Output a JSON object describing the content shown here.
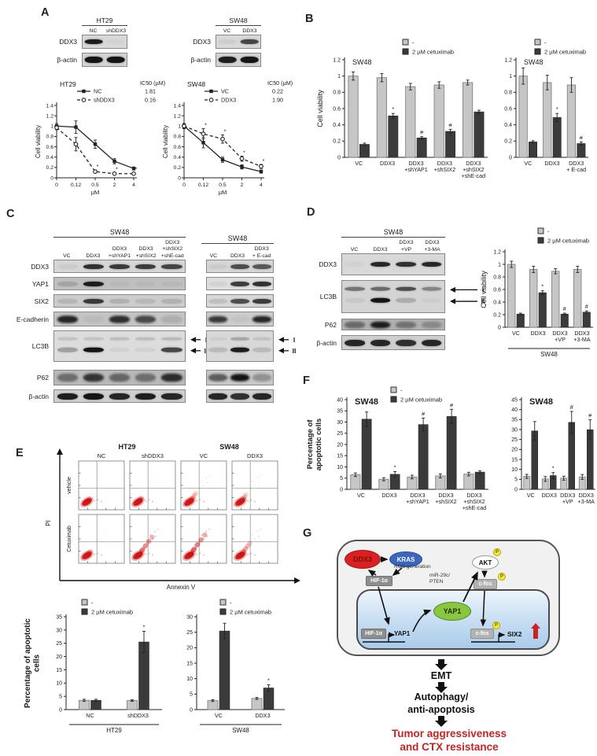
{
  "legend": {
    "untreated": "-",
    "treated": "2 µM cetuximab"
  },
  "colors": {
    "bar_untreated": "#c6c6c6",
    "bar_treated": "#3b3b3b",
    "scatter": "#cf1212",
    "ddx3": "#d92121",
    "kras": "#3b67c0",
    "yap1": "#8bc63f",
    "outcome_red": "#c42424"
  },
  "panels": {
    "a": {
      "label": "A",
      "blots": [
        {
          "title": "HT29",
          "lanes": [
            [
              "NC"
            ],
            [
              "shDDX3"
            ]
          ],
          "rows": [
            {
              "label": "DDX3",
              "h": 18,
              "bg": "#d8d8d8",
              "bands": [
                0.95,
                0.03
              ]
            },
            {
              "label": "β-actin",
              "h": 18,
              "bg": "#d4d4d4",
              "bands": [
                1,
                1
              ],
              "bh": 8
            }
          ]
        },
        {
          "title": "SW48",
          "lanes": [
            [
              "VC"
            ],
            [
              "DDX3"
            ]
          ],
          "rows": [
            {
              "label": "DDX3",
              "h": 18,
              "bg": "#d8d8d8",
              "bands": [
                0.05,
                0.75
              ]
            },
            {
              "label": "β-actin",
              "h": 18,
              "bg": "#d4d4d4",
              "bands": [
                0.95,
                1
              ],
              "bh": 8
            }
          ]
        }
      ],
      "charts": [
        {
          "type": "line",
          "title": "HT29",
          "ylabel": "Cell viability",
          "xlabel": "µM",
          "ymax": 1.4,
          "ystep": 0.2,
          "x": [
            "0",
            "0.12",
            "0.5",
            "2",
            "4"
          ],
          "ic50_header": "IC50 (µM)",
          "series": [
            {
              "name": "NC",
              "ic50": "1.81",
              "dashed": false,
              "values": [
                1.0,
                0.98,
                0.65,
                0.32,
                0.18
              ],
              "err": [
                0.05,
                0.12,
                0.08,
                0.05,
                0.03
              ],
              "sig": [
                "",
                "",
                "",
                "",
                ""
              ]
            },
            {
              "name": "shDDX3",
              "ic50": "0.16",
              "dashed": true,
              "values": [
                0.97,
                0.65,
                0.12,
                0.08,
                0.08
              ],
              "err": [
                0.04,
                0.13,
                0.03,
                0.02,
                0.02
              ],
              "sig": [
                "",
                "",
                "*",
                "*",
                "*"
              ]
            }
          ]
        },
        {
          "type": "line",
          "title": "SW48",
          "ylabel": "Cell viability",
          "xlabel": "µM",
          "ymax": 1.4,
          "ystep": 0.2,
          "x": [
            "0",
            "0.12",
            "0.5",
            "2",
            "4"
          ],
          "ic50_header": "IC50 (µM)",
          "series": [
            {
              "name": "VC",
              "ic50": "0.22",
              "dashed": false,
              "values": [
                1.0,
                0.68,
                0.35,
                0.21,
                0.12
              ],
              "err": [
                0.05,
                0.1,
                0.05,
                0.04,
                0.03
              ],
              "sig": [
                "",
                "",
                "",
                "",
                ""
              ]
            },
            {
              "name": "DDX3",
              "ic50": "1.90",
              "dashed": true,
              "values": [
                1.0,
                0.85,
                0.75,
                0.37,
                0.22
              ],
              "err": [
                0.04,
                0.1,
                0.08,
                0.05,
                0.04
              ],
              "sig": [
                "",
                "*",
                "*",
                "*",
                "*"
              ]
            }
          ]
        }
      ]
    },
    "b": {
      "label": "B",
      "charts": [
        {
          "type": "bar",
          "title": "SW48",
          "ylabel": "Cell viability",
          "ymax": 1.2,
          "ystep": 0.2,
          "categories": [
            [
              "VC"
            ],
            [
              "DDX3"
            ],
            [
              "DDX3",
              "+shYAP1"
            ],
            [
              "DDX3",
              "+shSIX2"
            ],
            [
              "DDX3",
              "+shSIX2",
              "+shE-cad"
            ]
          ],
          "untreated": [
            1.0,
            0.98,
            0.87,
            0.89,
            0.92
          ],
          "untreated_err": [
            0.05,
            0.05,
            0.04,
            0.04,
            0.03
          ],
          "treated": [
            0.16,
            0.51,
            0.24,
            0.32,
            0.56
          ],
          "treated_err": [
            0.015,
            0.03,
            0.015,
            0.025,
            0.02
          ],
          "marks": [
            "",
            "*",
            "#",
            "#",
            ""
          ],
          "legend": true
        },
        {
          "type": "bar",
          "title": "SW48",
          "ymax": 1.2,
          "ystep": 0.2,
          "categories": [
            [
              "VC"
            ],
            [
              "DDX3"
            ],
            [
              "DDX3",
              "+ E-cad"
            ]
          ],
          "untreated": [
            1.0,
            0.92,
            0.89
          ],
          "untreated_err": [
            0.1,
            0.09,
            0.09
          ],
          "treated": [
            0.19,
            0.49,
            0.17
          ],
          "treated_err": [
            0.015,
            0.05,
            0.02
          ],
          "marks": [
            "",
            "*",
            "#"
          ],
          "legend": true
        }
      ]
    },
    "c": {
      "label": "C",
      "blots": [
        {
          "title": "SW48",
          "lanes": [
            [
              "VC"
            ],
            [
              "DDX3"
            ],
            [
              "DDX3",
              "+shYAP1"
            ],
            [
              "DDX3",
              "+shSIX2"
            ],
            [
              "DDX3",
              "+shSIX2",
              "+shE-cad"
            ]
          ],
          "rows": [
            {
              "label": "DDX3",
              "h": 17,
              "bg": "#d6d6d6",
              "bands": [
                0.05,
                0.85,
                0.8,
                0.8,
                0.75
              ]
            },
            {
              "label": "YAP1",
              "h": 17,
              "bg": "#bfbfbf",
              "bands": [
                0.15,
                0.95,
                0.04,
                0.04,
                0.04
              ]
            },
            {
              "label": "SIX2",
              "h": 17,
              "bg": "#cccccc",
              "bands": [
                0.12,
                0.8,
                0.14,
                0.1,
                0.14
              ]
            },
            {
              "label": "E-cadherin",
              "h": 19,
              "bg": "#c4c4c4",
              "smudge": true,
              "bands": [
                0.9,
                0.05,
                0.85,
                0.7,
                0.12
              ],
              "bh": 9
            },
            {
              "label": "LC3B",
              "h": 40,
              "bg": "#dcdcdc",
              "lc3b": true,
              "i": [
                0.12,
                0.12,
                0.14,
                0.14,
                0.16
              ],
              "ii": [
                0.3,
                1,
                0.05,
                0.05,
                0.75
              ],
              "arrows": [
                "I",
                "II"
              ],
              "gap": 10
            },
            {
              "label": "P62",
              "h": 20,
              "bg": "#b8b8b8",
              "smudge": true,
              "bands": [
                0.45,
                0.8,
                0.5,
                0.45,
                0.85
              ],
              "bh": 10
            },
            {
              "label": "β-actin",
              "h": 17,
              "bg": "#cfcfcf",
              "bands": [
                0.95,
                1,
                0.9,
                0.95,
                0.9
              ],
              "bh": 8
            }
          ]
        },
        {
          "title": "SW48",
          "lanes": [
            [
              "VC"
            ],
            [
              "DDX3"
            ],
            [
              "DDX3",
              "+ E-cad"
            ]
          ],
          "rows": [
            {
              "label": "",
              "h": 17,
              "bg": "#d6d6d6",
              "bands": [
                0.05,
                0.7,
                0.65
              ]
            },
            {
              "label": "",
              "h": 17,
              "bg": "#dedede",
              "bands": [
                0.05,
                0.8,
                0.85
              ]
            },
            {
              "label": "",
              "h": 17,
              "bg": "#d8d8d8",
              "bands": [
                0.12,
                0.7,
                0.8
              ]
            },
            {
              "label": "",
              "h": 19,
              "bg": "#cccccc",
              "smudge": true,
              "bands": [
                0.8,
                0.04,
                0.9
              ],
              "bh": 8
            },
            {
              "label": "",
              "h": 40,
              "bg": "#d8d8d8",
              "lc3b": true,
              "i": [
                0.05,
                0.25,
                0.1
              ],
              "ii": [
                0.15,
                0.95,
                0.15
              ],
              "arrows": [
                "I",
                "II"
              ],
              "gap": 10
            },
            {
              "label": "",
              "h": 20,
              "bg": "#c8c8c8",
              "smudge": true,
              "bands": [
                0.6,
                1,
                0.3
              ],
              "bh": 9
            },
            {
              "label": "",
              "h": 17,
              "bg": "#cfcfcf",
              "bands": [
                0.9,
                0.85,
                0.9
              ],
              "bh": 8
            }
          ]
        }
      ]
    },
    "d": {
      "label": "D",
      "blot": {
        "title": "SW48",
        "lanes": [
          [
            "VC"
          ],
          [
            "DDX3"
          ],
          [
            "DDX3",
            "+VP"
          ],
          [
            "DDX3",
            "+3-MA"
          ]
        ],
        "rows": [
          {
            "label": "DDX3",
            "h": 28,
            "bg": "#d8d8d8",
            "bands": [
              0.03,
              0.9,
              0.85,
              0.9
            ]
          },
          {
            "label": "LC3B",
            "h": 42,
            "bg": "#d4d4d4",
            "lc3b": true,
            "i": [
              0.5,
              0.55,
              0.7,
              0.4
            ],
            "ii": [
              0.06,
              1,
              0.2,
              0.03
            ],
            "arrows": [
              "I",
              "II"
            ],
            "gap": 7
          },
          {
            "label": "P62",
            "h": 15,
            "bg": "#b0b0b0",
            "smudge": true,
            "bands": [
              0.45,
              0.95,
              0.4,
              0.25
            ],
            "bh": 8
          },
          {
            "label": "β-actin",
            "h": 19,
            "bg": "#cfcfcf",
            "bands": [
              0.9,
              0.9,
              0.85,
              0.9
            ],
            "bh": 8
          }
        ]
      },
      "chart": {
        "type": "bar",
        "ylabel": "Cell viability",
        "ymax": 1.2,
        "ystep": 0.2,
        "categories": [
          [
            "VC"
          ],
          [
            "DDX3"
          ],
          [
            "DDX3",
            "+VP"
          ],
          [
            "DDX3",
            "+3-MA"
          ]
        ],
        "untreated": [
          1.0,
          0.92,
          0.89,
          0.92
        ],
        "untreated_err": [
          0.05,
          0.05,
          0.04,
          0.05
        ],
        "treated": [
          0.21,
          0.55,
          0.21,
          0.24
        ],
        "treated_err": [
          0.015,
          0.03,
          0.015,
          0.02
        ],
        "marks": [
          "",
          "*",
          "#",
          "#"
        ],
        "legend": true,
        "group": "SW48"
      }
    },
    "e": {
      "label": "E",
      "flow": {
        "groups": [
          {
            "name": "HT29",
            "cols": [
              "NC",
              "shDDX3"
            ]
          },
          {
            "name": "SW48",
            "cols": [
              "VC",
              "DDX3"
            ]
          }
        ],
        "rows": [
          "vehicle",
          "Cetuximab"
        ],
        "xlabel": "Annexin V",
        "ylabel": "PI",
        "intensity": [
          [
            0.12,
            0.18,
            0.38,
            0.32
          ],
          [
            0.18,
            0.85,
            0.95,
            0.55
          ]
        ]
      },
      "charts": [
        {
          "type": "bar",
          "ylabel": [
            "Percentage of apoptotic",
            "cells"
          ],
          "ymax": 35,
          "ystep": 5,
          "categories": [
            [
              "NC"
            ],
            [
              "shDDX3"
            ]
          ],
          "group": "HT29",
          "untreated": [
            3.5,
            3.4
          ],
          "untreated_err": [
            0.4,
            0.3
          ],
          "treated": [
            3.5,
            25.5
          ],
          "treated_err": [
            0.4,
            4.0
          ],
          "marks": [
            "",
            "*"
          ],
          "legend": true
        },
        {
          "type": "bar",
          "ymax": 30,
          "ystep": 5,
          "categories": [
            [
              "VC"
            ],
            [
              "DDX3"
            ]
          ],
          "group": "SW48",
          "untreated": [
            2.9,
            3.6
          ],
          "untreated_err": [
            0.3,
            0.3
          ],
          "treated": [
            25.4,
            7.0
          ],
          "treated_err": [
            2.5,
            1.0
          ],
          "marks": [
            "",
            "*"
          ],
          "legend": true
        }
      ]
    },
    "f": {
      "label": "F",
      "charts": [
        {
          "type": "bar",
          "title": "SW48",
          "ylabel": [
            "Percentage of",
            "apoptotic cells"
          ],
          "ymax": 40,
          "ystep": 5,
          "categories": [
            [
              "VC"
            ],
            [
              "DDX3"
            ],
            [
              "DDX3",
              "+shYAP1"
            ],
            [
              "DDX3",
              "+shSIX2"
            ],
            [
              "DDX3",
              "+shSIX2",
              "+shE-cad"
            ]
          ],
          "untreated": [
            6.5,
            4.5,
            5.5,
            6.0,
            6.8
          ],
          "untreated_err": [
            0.8,
            0.7,
            0.8,
            0.9,
            0.8
          ],
          "treated": [
            31.3,
            6.7,
            28.9,
            32.5,
            7.7
          ],
          "treated_err": [
            3.2,
            1.2,
            2.9,
            3.2,
            0.6
          ],
          "marks": [
            "",
            "*",
            "#",
            "#",
            ""
          ],
          "legend": true
        },
        {
          "type": "bar",
          "title": "SW48",
          "ymax": 45,
          "ystep": 5,
          "categories": [
            [
              "VC"
            ],
            [
              "DDX3"
            ],
            [
              "DDX3",
              "+VP"
            ],
            [
              "DDX3",
              "+3-MA"
            ]
          ],
          "untreated": [
            6.5,
            5.2,
            5.6,
            6.2
          ],
          "untreated_err": [
            1.0,
            1.2,
            1.0,
            1.2
          ],
          "treated": [
            29.3,
            6.9,
            33.6,
            29.9
          ],
          "treated_err": [
            4.7,
            1.5,
            5.5,
            5.0
          ],
          "marks": [
            "",
            "*",
            "#",
            "#"
          ],
          "legend": false
        }
      ]
    },
    "g": {
      "label": "G",
      "nodes": {
        "ddx3": "DDX3",
        "kras": "KRAS",
        "ros": "ROS generation",
        "hif_cyto": "HIF-1α",
        "akt": "AKT",
        "p": "P",
        "cfos_cyto": "c-fos",
        "mir_line1": "miR-29c/",
        "mir_line2": "PTEN",
        "hif_nuc": "HIF-1α",
        "yap1_gene": "YAP1",
        "yap1": "YAP1",
        "cfos_nuc": "c-fos",
        "six2": "SIX2"
      },
      "downstream": {
        "emt": "EMT",
        "autophagy_line1": "Autophagy/",
        "autophagy_line2": "anti-apoptosis",
        "outcome_line1": "Tumor aggressiveness",
        "outcome_line2": "and CTX resistance"
      }
    }
  }
}
